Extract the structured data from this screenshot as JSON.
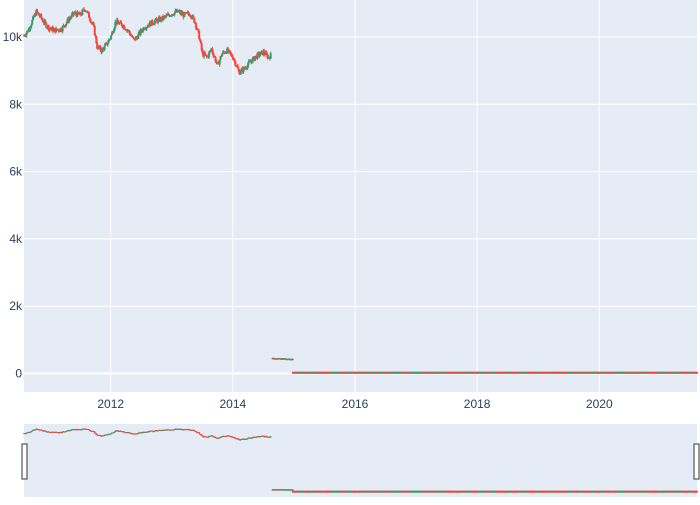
{
  "chart_data": {
    "type": "candlestick",
    "title": "",
    "xlabel": "",
    "ylabel": "",
    "xlim": [
      2010.58,
      2021.6
    ],
    "ylim": [
      -550,
      11100
    ],
    "x_ticks": [
      {
        "value": 2012,
        "label": "2012"
      },
      {
        "value": 2014,
        "label": "2014"
      },
      {
        "value": 2016,
        "label": "2016"
      },
      {
        "value": 2018,
        "label": "2018"
      },
      {
        "value": 2020,
        "label": "2020"
      }
    ],
    "y_ticks": [
      {
        "value": 0,
        "label": "0"
      },
      {
        "value": 2000,
        "label": "2k"
      },
      {
        "value": 4000,
        "label": "4k"
      },
      {
        "value": 6000,
        "label": "6k"
      },
      {
        "value": 8000,
        "label": "8k"
      },
      {
        "value": 10000,
        "label": "10k"
      }
    ],
    "grid": true,
    "rangeslider": true,
    "colors": {
      "increasing": "#3d9970",
      "decreasing": "#ff4136",
      "plot_bg": "#e5ecf6",
      "grid": "#ffffff",
      "tick_text": "#2a3f5f"
    },
    "close_path": [
      [
        2010.58,
        10050
      ],
      [
        2010.65,
        10200
      ],
      [
        2010.72,
        10500
      ],
      [
        2010.78,
        10750
      ],
      [
        2010.85,
        10600
      ],
      [
        2010.92,
        10400
      ],
      [
        2011.0,
        10250
      ],
      [
        2011.1,
        10200
      ],
      [
        2011.2,
        10250
      ],
      [
        2011.3,
        10500
      ],
      [
        2011.4,
        10700
      ],
      [
        2011.5,
        10650
      ],
      [
        2011.58,
        10850
      ],
      [
        2011.65,
        10600
      ],
      [
        2011.72,
        10300
      ],
      [
        2011.78,
        9700
      ],
      [
        2011.85,
        9600
      ],
      [
        2011.92,
        9750
      ],
      [
        2012.0,
        10000
      ],
      [
        2012.08,
        10450
      ],
      [
        2012.2,
        10350
      ],
      [
        2012.3,
        10150
      ],
      [
        2012.38,
        9900
      ],
      [
        2012.45,
        10050
      ],
      [
        2012.55,
        10300
      ],
      [
        2012.7,
        10450
      ],
      [
        2012.85,
        10550
      ],
      [
        2013.0,
        10700
      ],
      [
        2013.1,
        10750
      ],
      [
        2013.2,
        10650
      ],
      [
        2013.3,
        10700
      ],
      [
        2013.38,
        10450
      ],
      [
        2013.45,
        10000
      ],
      [
        2013.5,
        9500
      ],
      [
        2013.58,
        9400
      ],
      [
        2013.65,
        9650
      ],
      [
        2013.75,
        9150
      ],
      [
        2013.82,
        9500
      ],
      [
        2013.9,
        9600
      ],
      [
        2014.0,
        9400
      ],
      [
        2014.05,
        9200
      ],
      [
        2014.1,
        8950
      ],
      [
        2014.18,
        9050
      ],
      [
        2014.28,
        9250
      ],
      [
        2014.4,
        9450
      ],
      [
        2014.5,
        9550
      ],
      [
        2014.58,
        9400
      ],
      [
        2014.62,
        9450
      ]
    ],
    "post_drop_segment": {
      "x": [
        2014.65,
        2014.98
      ],
      "values": [
        455,
        425
      ]
    },
    "tail_segment": {
      "x": [
        2014.98,
        2021.6
      ],
      "value": 22
    }
  }
}
